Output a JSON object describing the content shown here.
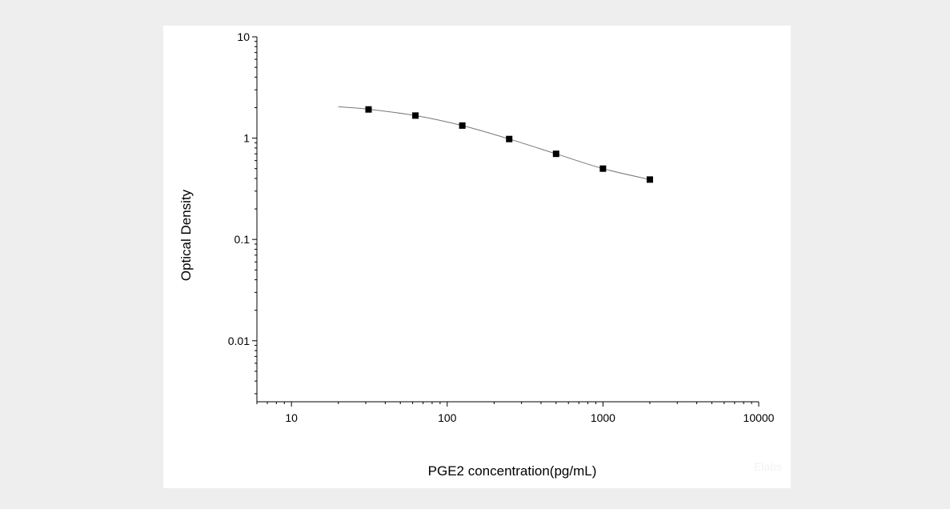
{
  "chart_data": {
    "type": "scatter",
    "xlabel": "PGE2 concentration(pg/mL)",
    "ylabel": "Optical Density",
    "x_scale": "log",
    "y_scale": "log",
    "xlim": [
      6,
      10000
    ],
    "ylim": [
      0.0025,
      10
    ],
    "x_ticks": [
      "10",
      "100",
      "1000",
      "10000"
    ],
    "y_ticks": [
      "0.01",
      "0.1",
      "1",
      "10"
    ],
    "grid": false,
    "legend": "none",
    "marker_color": "#000000",
    "line_color": "#777777",
    "series": [
      {
        "points": [
          {
            "x": 31.25,
            "y": 1.92
          },
          {
            "x": 62.5,
            "y": 1.67
          },
          {
            "x": 125,
            "y": 1.33
          },
          {
            "x": 250,
            "y": 0.98
          },
          {
            "x": 500,
            "y": 0.7
          },
          {
            "x": 1000,
            "y": 0.5
          },
          {
            "x": 2000,
            "y": 0.39
          }
        ]
      }
    ],
    "fit_curve": [
      {
        "x": 20,
        "y": 2.04
      },
      {
        "x": 31.25,
        "y": 1.93
      },
      {
        "x": 62.5,
        "y": 1.67
      },
      {
        "x": 125,
        "y": 1.33
      },
      {
        "x": 250,
        "y": 0.98
      },
      {
        "x": 500,
        "y": 0.7
      },
      {
        "x": 1000,
        "y": 0.5
      },
      {
        "x": 2000,
        "y": 0.39
      }
    ]
  },
  "watermark_text": "Elabs"
}
